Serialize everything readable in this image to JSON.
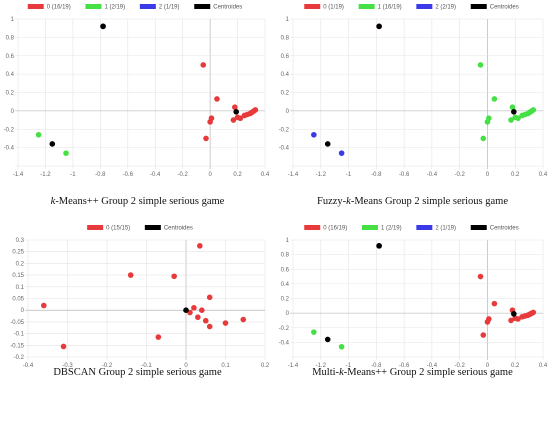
{
  "colors": {
    "cluster0": "#e83a3a",
    "cluster1": "#44e044",
    "cluster2": "#3a3ae8",
    "centroid": "#000000",
    "grid": "#e4e4e4",
    "axis_zero": "#aaaaaa"
  },
  "chart_data": [
    {
      "type": "scatter",
      "caption_pre": "",
      "caption_em": "k",
      "caption_post": "-Means++ Group 2 simple serious game",
      "xlim": [
        -1.4,
        0.4
      ],
      "ylim": [
        -0.6,
        1.0
      ],
      "xticks": [
        -1.4,
        -1.2,
        -1,
        -0.8,
        -0.6,
        -0.4,
        -0.2,
        0,
        0.2,
        0.4
      ],
      "xtick_labels": [
        "-1.4",
        "-1.2",
        "-1",
        "-0.8",
        "-0.6",
        "-0.4",
        "-0.2",
        "0",
        "0.2",
        "0.4"
      ],
      "yticks": [
        -0.6,
        -0.4,
        -0.2,
        0,
        0.2,
        0.4,
        0.6,
        0.8,
        1.0
      ],
      "ytick_labels": [
        "",
        "-0.4",
        "-0.2",
        "0",
        "0.2",
        "0.4",
        "0.6",
        "0.8",
        "1"
      ],
      "grid": true,
      "legend_position": "top",
      "series": [
        {
          "name": "0 (16/19)",
          "color": "#e83a3a",
          "points": [
            [
              -0.05,
              0.5
            ],
            [
              0.05,
              0.13
            ],
            [
              -0.03,
              -0.3
            ],
            [
              0.0,
              -0.12
            ],
            [
              0.01,
              -0.08
            ],
            [
              0.18,
              0.04
            ],
            [
              0.17,
              -0.1
            ],
            [
              0.2,
              -0.07
            ],
            [
              0.22,
              -0.08
            ],
            [
              0.25,
              -0.05
            ],
            [
              0.27,
              -0.04
            ],
            [
              0.29,
              -0.03
            ],
            [
              0.3,
              -0.02
            ],
            [
              0.31,
              -0.01
            ],
            [
              0.32,
              0.0
            ],
            [
              0.33,
              0.01
            ]
          ]
        },
        {
          "name": "1 (2/19)",
          "color": "#44e044",
          "points": [
            [
              -1.25,
              -0.26
            ],
            [
              -1.05,
              -0.46
            ]
          ]
        },
        {
          "name": "2 (1/19)",
          "color": "#3a3ae8",
          "points": [
            [
              -0.78,
              0.92
            ]
          ]
        },
        {
          "name": "Centroides",
          "color": "#000000",
          "points": [
            [
              -1.15,
              -0.36
            ],
            [
              -0.78,
              0.92
            ],
            [
              0.19,
              -0.01
            ]
          ]
        }
      ]
    },
    {
      "type": "scatter",
      "caption_pre": "Fuzzy-",
      "caption_em": "k",
      "caption_post": "-Means Group 2 simple serious game",
      "xlim": [
        -1.4,
        0.4
      ],
      "ylim": [
        -0.6,
        1.0
      ],
      "xticks": [
        -1.4,
        -1.2,
        -1,
        -0.8,
        -0.6,
        -0.4,
        -0.2,
        0,
        0.2,
        0.4
      ],
      "xtick_labels": [
        "-1.4",
        "-1.2",
        "-1",
        "-0.8",
        "-0.6",
        "-0.4",
        "-0.2",
        "0",
        "0.2",
        "0.4"
      ],
      "yticks": [
        -0.6,
        -0.4,
        -0.2,
        0,
        0.2,
        0.4,
        0.6,
        0.8,
        1.0
      ],
      "ytick_labels": [
        "",
        "-0.4",
        "-0.2",
        "0",
        "0.2",
        "0.4",
        "0.6",
        "0.8",
        "1"
      ],
      "grid": true,
      "legend_position": "top",
      "series": [
        {
          "name": "0 (1/19)",
          "color": "#e83a3a",
          "points": [
            [
              -0.78,
              0.92
            ]
          ]
        },
        {
          "name": "1 (16/19)",
          "color": "#44e044",
          "points": [
            [
              -0.05,
              0.5
            ],
            [
              0.05,
              0.13
            ],
            [
              -0.03,
              -0.3
            ],
            [
              0.0,
              -0.12
            ],
            [
              0.01,
              -0.08
            ],
            [
              0.18,
              0.04
            ],
            [
              0.17,
              -0.1
            ],
            [
              0.2,
              -0.07
            ],
            [
              0.22,
              -0.08
            ],
            [
              0.25,
              -0.05
            ],
            [
              0.27,
              -0.04
            ],
            [
              0.29,
              -0.03
            ],
            [
              0.3,
              -0.02
            ],
            [
              0.31,
              -0.01
            ],
            [
              0.32,
              0.0
            ],
            [
              0.33,
              0.01
            ]
          ]
        },
        {
          "name": "2 (2/19)",
          "color": "#3a3ae8",
          "points": [
            [
              -1.25,
              -0.26
            ],
            [
              -1.05,
              -0.46
            ]
          ]
        },
        {
          "name": "Centroides",
          "color": "#000000",
          "points": [
            [
              -1.15,
              -0.36
            ],
            [
              -0.78,
              0.92
            ],
            [
              0.19,
              -0.01
            ]
          ]
        }
      ]
    },
    {
      "type": "scatter",
      "caption_pre": "DBSCAN Group 2 simple serious game",
      "caption_em": "",
      "caption_post": "",
      "xlim": [
        -0.4,
        0.2
      ],
      "ylim": [
        -0.2,
        0.3
      ],
      "xticks": [
        -0.4,
        -0.3,
        -0.2,
        -0.1,
        0,
        0.1,
        0.2
      ],
      "xtick_labels": [
        "-0.4",
        "-0.3",
        "-0.2",
        "-0.1",
        "0",
        "0.1",
        "0.2"
      ],
      "yticks": [
        -0.2,
        -0.15,
        -0.1,
        -0.05,
        0,
        0.05,
        0.1,
        0.15,
        0.2,
        0.25,
        0.3
      ],
      "ytick_labels": [
        "-0.2",
        "-0.15",
        "-0.1",
        "-0.05",
        "0",
        "0.05",
        "0.1",
        "0.15",
        "0.2",
        "0.25",
        "0.3"
      ],
      "grid": true,
      "legend_position": "top",
      "series": [
        {
          "name": "0 (15/15)",
          "color": "#e83a3a",
          "points": [
            [
              -0.36,
              0.02
            ],
            [
              -0.31,
              -0.155
            ],
            [
              -0.14,
              0.15
            ],
            [
              -0.07,
              -0.115
            ],
            [
              -0.03,
              0.145
            ],
            [
              0.035,
              0.275
            ],
            [
              0.06,
              0.055
            ],
            [
              0.03,
              -0.03
            ],
            [
              0.05,
              -0.045
            ],
            [
              0.06,
              -0.07
            ],
            [
              0.1,
              -0.055
            ],
            [
              0.145,
              -0.04
            ],
            [
              0.01,
              -0.01
            ],
            [
              0.02,
              0.01
            ],
            [
              0.04,
              0.0
            ]
          ]
        },
        {
          "name": "Centroides",
          "color": "#000000",
          "points": [
            [
              0.0,
              0.0
            ]
          ]
        }
      ]
    },
    {
      "type": "scatter",
      "caption_pre": "Multi-",
      "caption_em": "k",
      "caption_post": "-Means++ Group 2 simple serious game",
      "xlim": [
        -1.4,
        0.4
      ],
      "ylim": [
        -0.6,
        1.0
      ],
      "xticks": [
        -1.4,
        -1.2,
        -1,
        -0.8,
        -0.6,
        -0.4,
        -0.2,
        0,
        0.2,
        0.4
      ],
      "xtick_labels": [
        "-1.4",
        "-1.2",
        "-1",
        "-0.8",
        "-0.6",
        "-0.4",
        "-0.2",
        "0",
        "0.2",
        "0.4"
      ],
      "yticks": [
        -0.6,
        -0.4,
        -0.2,
        0,
        0.2,
        0.4,
        0.6,
        0.8,
        1.0
      ],
      "ytick_labels": [
        "",
        "-0.4",
        "-0.2",
        "0",
        "0.2",
        "0.4",
        "0.6",
        "0.8",
        "1"
      ],
      "grid": true,
      "legend_position": "top",
      "series": [
        {
          "name": "0 (16/19)",
          "color": "#e83a3a",
          "points": [
            [
              -0.05,
              0.5
            ],
            [
              0.05,
              0.13
            ],
            [
              -0.03,
              -0.3
            ],
            [
              0.0,
              -0.12
            ],
            [
              0.01,
              -0.08
            ],
            [
              0.18,
              0.04
            ],
            [
              0.17,
              -0.1
            ],
            [
              0.2,
              -0.07
            ],
            [
              0.22,
              -0.08
            ],
            [
              0.25,
              -0.05
            ],
            [
              0.27,
              -0.04
            ],
            [
              0.29,
              -0.03
            ],
            [
              0.3,
              -0.02
            ],
            [
              0.31,
              -0.01
            ],
            [
              0.32,
              0.0
            ],
            [
              0.33,
              0.01
            ]
          ]
        },
        {
          "name": "1 (2/19)",
          "color": "#44e044",
          "points": [
            [
              -1.25,
              -0.26
            ],
            [
              -1.05,
              -0.46
            ]
          ]
        },
        {
          "name": "2 (1/19)",
          "color": "#3a3ae8",
          "points": [
            [
              -0.78,
              0.92
            ]
          ]
        },
        {
          "name": "Centroides",
          "color": "#000000",
          "points": [
            [
              -1.15,
              -0.36
            ],
            [
              -0.78,
              0.92
            ],
            [
              0.19,
              -0.01
            ]
          ]
        }
      ]
    }
  ]
}
